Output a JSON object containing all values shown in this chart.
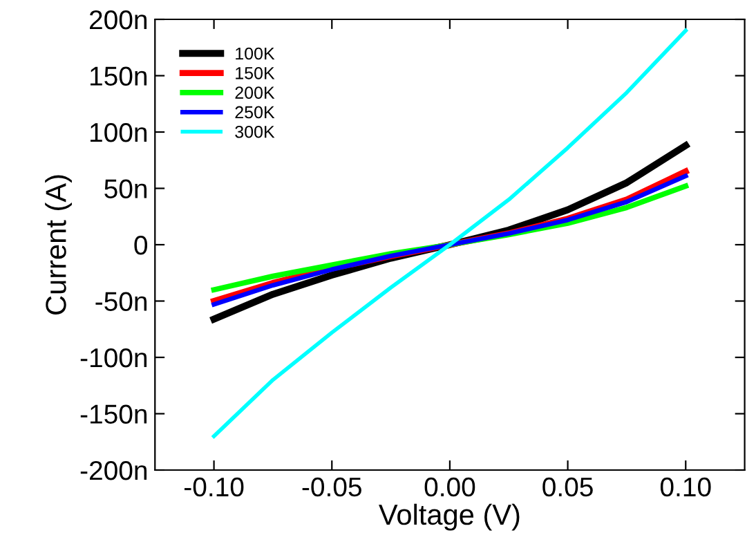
{
  "chart_data": {
    "type": "line",
    "xlabel": "Voltage (V)",
    "ylabel": "Current (A)",
    "x": [
      -0.1,
      -0.075,
      -0.05,
      -0.025,
      0,
      0.025,
      0.05,
      0.075,
      0.1
    ],
    "series": [
      {
        "name": "100K",
        "color": "#000000",
        "values": [
          -66,
          -44,
          -27,
          -12,
          0,
          13,
          31,
          55,
          88
        ]
      },
      {
        "name": "150K",
        "color": "#ff0000",
        "values": [
          -50,
          -34,
          -21,
          -10,
          0,
          10,
          23,
          40,
          65
        ]
      },
      {
        "name": "200K",
        "color": "#00ff00",
        "values": [
          -40,
          -28,
          -18,
          -8,
          0,
          9,
          19,
          33,
          52
        ]
      },
      {
        "name": "250K",
        "color": "#0000ff",
        "values": [
          -53,
          -36,
          -22,
          -10,
          0,
          10,
          22,
          38,
          61
        ]
      },
      {
        "name": "300K",
        "color": "#00ffff",
        "values": [
          -170,
          -120,
          -78,
          -38,
          0,
          40,
          86,
          135,
          190
        ]
      }
    ],
    "xlim": [
      -0.125,
      0.125
    ],
    "xticks": [
      {
        "value": -0.1,
        "label": "-0.10"
      },
      {
        "value": -0.05,
        "label": "-0.05"
      },
      {
        "value": 0,
        "label": "0.00"
      },
      {
        "value": 0.05,
        "label": "0.05"
      },
      {
        "value": 0.1,
        "label": "0.10"
      }
    ],
    "ylim": [
      -200,
      200
    ],
    "yticks": [
      {
        "value": -200,
        "label": "-200n"
      },
      {
        "value": -150,
        "label": "-150n"
      },
      {
        "value": -100,
        "label": "-100n"
      },
      {
        "value": -50,
        "label": "-50n"
      },
      0,
      {
        "value": 50,
        "label": "50n"
      },
      {
        "value": 100,
        "label": "100n"
      },
      {
        "value": 150,
        "label": "150n"
      },
      {
        "value": 200,
        "label": "200n"
      }
    ],
    "grid": false,
    "legend": "top left",
    "marker": "none",
    "line_style": "solid"
  }
}
